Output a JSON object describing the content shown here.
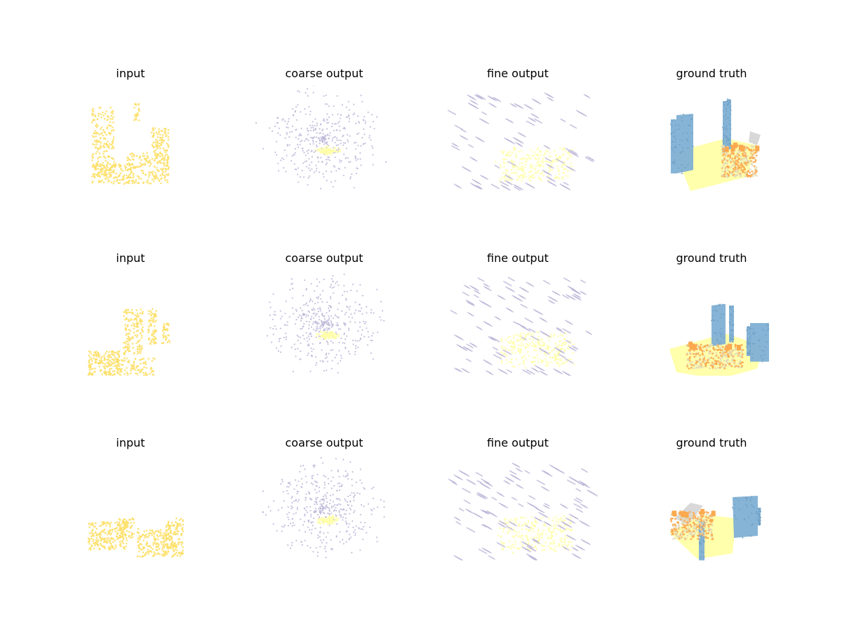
{
  "chart_data": {
    "type": "scatter",
    "projection": "3d",
    "grid": false,
    "axes_visible": false,
    "rows": 3,
    "columns": [
      "input",
      "coarse output",
      "fine output",
      "ground truth"
    ],
    "colors": {
      "input": "#fde06a",
      "predicted": "#bcb6d8",
      "floor": "#ffffa8",
      "wall": "#7fb0d4",
      "furniture": "#fca94f",
      "other": "#d6d6d6",
      "object_blend": "#e4dbb8"
    },
    "panels": [
      [
        {
          "title": "input",
          "kind": "input",
          "shape": "u-shape",
          "points": 650
        },
        {
          "title": "coarse output",
          "kind": "coarse",
          "points": 400
        },
        {
          "title": "fine output",
          "kind": "fine",
          "patches": 70
        },
        {
          "title": "ground truth",
          "kind": "gt",
          "layout": "walls-left"
        }
      ],
      [
        {
          "title": "input",
          "kind": "input",
          "shape": "l-shape",
          "points": 560
        },
        {
          "title": "coarse output",
          "kind": "coarse",
          "points": 420
        },
        {
          "title": "fine output",
          "kind": "fine",
          "patches": 90
        },
        {
          "title": "ground truth",
          "kind": "gt",
          "layout": "walls-back"
        }
      ],
      [
        {
          "title": "input",
          "kind": "input",
          "shape": "two-blocks",
          "points": 600
        },
        {
          "title": "coarse output",
          "kind": "coarse",
          "points": 420
        },
        {
          "title": "fine output",
          "kind": "fine",
          "patches": 95
        },
        {
          "title": "ground truth",
          "kind": "gt",
          "layout": "walls-right"
        }
      ]
    ]
  }
}
